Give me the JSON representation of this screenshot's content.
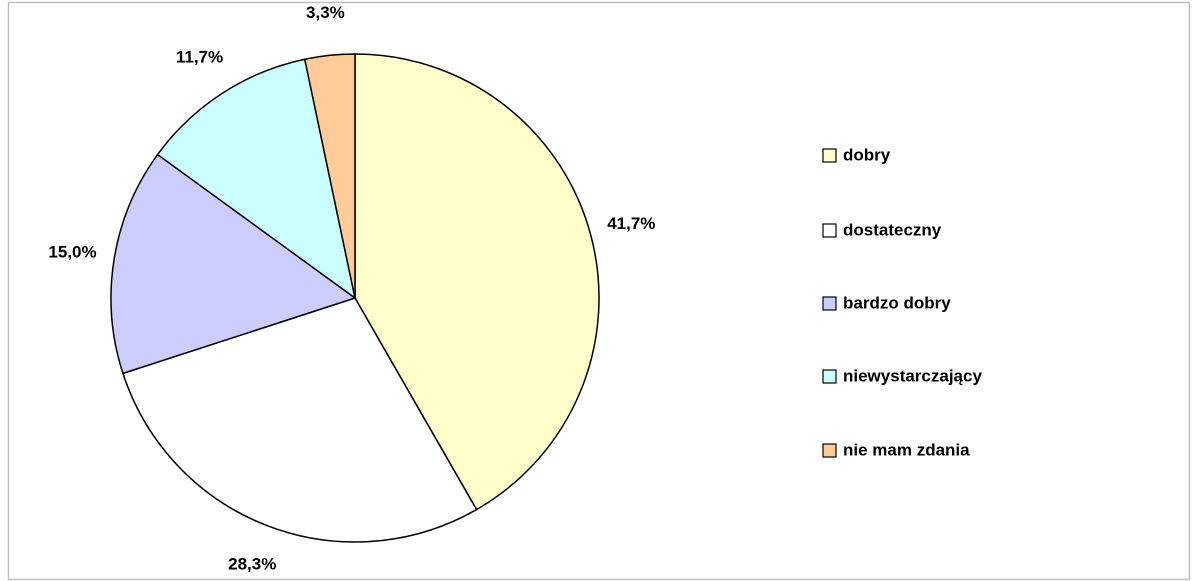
{
  "chart_data": {
    "type": "pie",
    "categories": [
      "dobry",
      "dostateczny",
      "bardzo dobry",
      "niewystarczający",
      "nie mam zdania"
    ],
    "values": [
      41.7,
      28.3,
      15.0,
      11.7,
      3.3
    ],
    "value_labels": [
      "41,7%",
      "28,3%",
      "15,0%",
      "11,7%",
      "3,3%"
    ],
    "colors": [
      "#ffffcc",
      "#ffffff",
      "#ccccff",
      "#ccffff",
      "#ffcc99"
    ],
    "legend": "right"
  }
}
